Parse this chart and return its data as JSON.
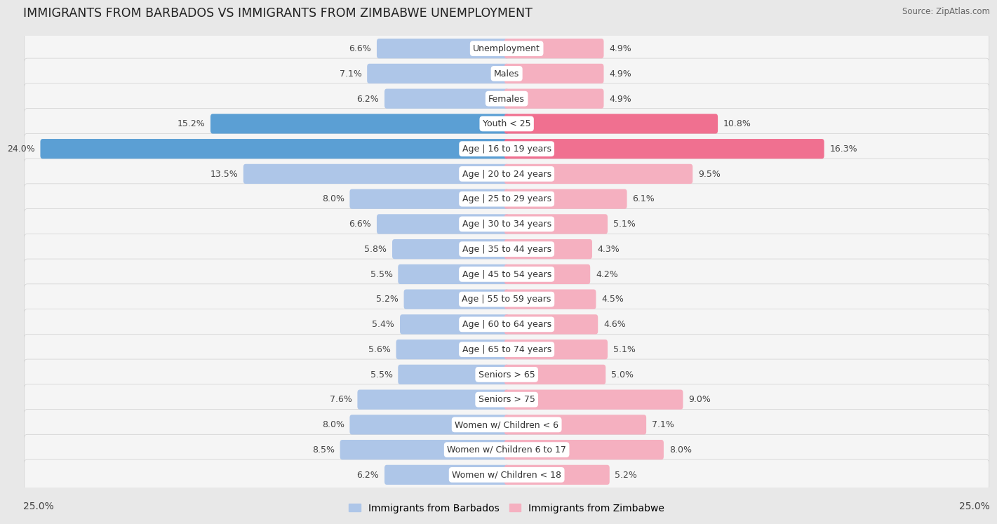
{
  "title": "IMMIGRANTS FROM BARBADOS VS IMMIGRANTS FROM ZIMBABWE UNEMPLOYMENT",
  "source": "Source: ZipAtlas.com",
  "categories": [
    "Unemployment",
    "Males",
    "Females",
    "Youth < 25",
    "Age | 16 to 19 years",
    "Age | 20 to 24 years",
    "Age | 25 to 29 years",
    "Age | 30 to 34 years",
    "Age | 35 to 44 years",
    "Age | 45 to 54 years",
    "Age | 55 to 59 years",
    "Age | 60 to 64 years",
    "Age | 65 to 74 years",
    "Seniors > 65",
    "Seniors > 75",
    "Women w/ Children < 6",
    "Women w/ Children 6 to 17",
    "Women w/ Children < 18"
  ],
  "barbados_values": [
    6.6,
    7.1,
    6.2,
    15.2,
    24.0,
    13.5,
    8.0,
    6.6,
    5.8,
    5.5,
    5.2,
    5.4,
    5.6,
    5.5,
    7.6,
    8.0,
    8.5,
    6.2
  ],
  "zimbabwe_values": [
    4.9,
    4.9,
    4.9,
    10.8,
    16.3,
    9.5,
    6.1,
    5.1,
    4.3,
    4.2,
    4.5,
    4.6,
    5.1,
    5.0,
    9.0,
    7.1,
    8.0,
    5.2
  ],
  "barbados_color_normal": "#aec6e8",
  "barbados_color_highlight": "#5b9fd4",
  "zimbabwe_color_normal": "#f5b0c0",
  "zimbabwe_color_highlight": "#f07090",
  "barbados_highlight_threshold": 15.0,
  "zimbabwe_highlight_threshold": 10.0,
  "axis_limit": 25.0,
  "background_color": "#e8e8e8",
  "row_bg_color": "#f5f5f5",
  "row_border_color": "#d0d0d0",
  "label_fontsize": 9.0,
  "value_fontsize": 9.0,
  "title_fontsize": 12.5,
  "legend_barbados": "Immigrants from Barbados",
  "legend_zimbabwe": "Immigrants from Zimbabwe",
  "axis_label_fontsize": 10
}
